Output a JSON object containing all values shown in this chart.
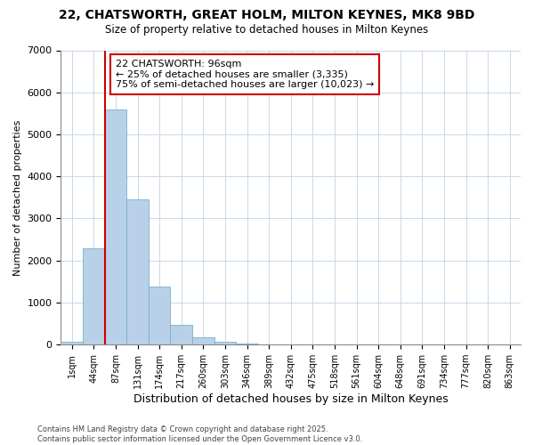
{
  "title1": "22, CHATSWORTH, GREAT HOLM, MILTON KEYNES, MK8 9BD",
  "title2": "Size of property relative to detached houses in Milton Keynes",
  "xlabel": "Distribution of detached houses by size in Milton Keynes",
  "ylabel": "Number of detached properties",
  "bins": [
    "1sqm",
    "44sqm",
    "87sqm",
    "131sqm",
    "174sqm",
    "217sqm",
    "260sqm",
    "303sqm",
    "346sqm",
    "389sqm",
    "432sqm",
    "475sqm",
    "518sqm",
    "561sqm",
    "604sqm",
    "648sqm",
    "691sqm",
    "734sqm",
    "777sqm",
    "820sqm",
    "863sqm"
  ],
  "values": [
    75,
    2300,
    5600,
    3450,
    1375,
    460,
    175,
    75,
    30,
    5,
    2,
    0,
    0,
    0,
    0,
    0,
    0,
    0,
    0,
    0,
    0
  ],
  "bar_color": "#b8d0e8",
  "bar_edge_color": "#7aaed0",
  "vline_x": 1.5,
  "vline_color": "#cc0000",
  "annotation_text": "22 CHATSWORTH: 96sqm\n← 25% of detached houses are smaller (3,335)\n75% of semi-detached houses are larger (10,023) →",
  "annotation_box_facecolor": "white",
  "annotation_box_edgecolor": "#cc0000",
  "ylim": [
    0,
    7000
  ],
  "yticks": [
    0,
    1000,
    2000,
    3000,
    4000,
    5000,
    6000,
    7000
  ],
  "footer": "Contains HM Land Registry data © Crown copyright and database right 2025.\nContains public sector information licensed under the Open Government Licence v3.0.",
  "bg_color": "#ffffff",
  "grid_color": "#c8d8e8"
}
